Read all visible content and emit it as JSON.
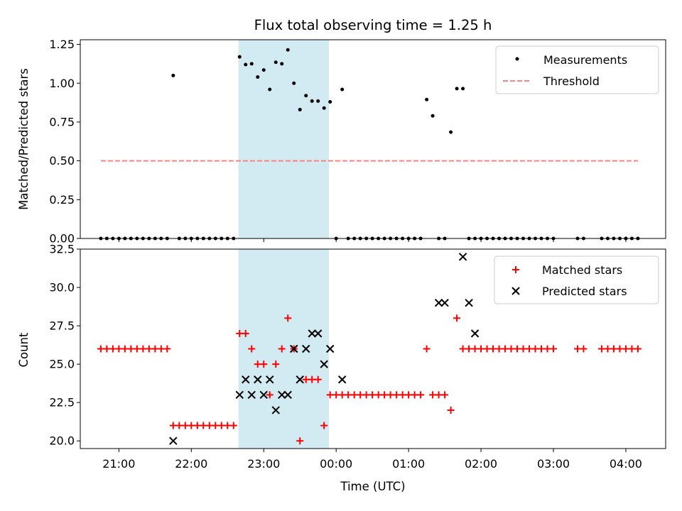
{
  "chart_data": [
    {
      "type": "scatter",
      "title": "Flux total observing time = 1.25 h",
      "ylabel": "Matched/Predicted stars",
      "xlabel": "",
      "ylim": [
        0,
        1.28
      ],
      "yticks": [
        "0.00",
        "0.25",
        "0.50",
        "0.75",
        "1.00",
        "1.25"
      ],
      "ytick_values": [
        0,
        0.25,
        0.5,
        0.75,
        1.0,
        1.25
      ],
      "xlim": [
        "20:28",
        "04:33"
      ],
      "highlight_span": {
        "x0": "22:39",
        "x1": "23:54",
        "color": "#add8e6"
      },
      "legend_position": "upper right",
      "series": [
        {
          "name": "Measurements",
          "kind": "points",
          "color": "#000000",
          "x": [
            "20:45",
            "20:50",
            "20:55",
            "21:00",
            "21:05",
            "21:10",
            "21:15",
            "21:20",
            "21:25",
            "21:30",
            "21:35",
            "21:40",
            "21:45",
            "21:50",
            "21:55",
            "22:00",
            "22:05",
            "22:10",
            "22:15",
            "22:20",
            "22:25",
            "22:30",
            "22:35",
            "22:40",
            "22:45",
            "22:50",
            "22:55",
            "23:00",
            "23:05",
            "23:10",
            "23:15",
            "23:20",
            "23:25",
            "23:30",
            "23:35",
            "23:40",
            "23:45",
            "23:50",
            "23:55",
            "24:00",
            "24:05",
            "24:10",
            "24:15",
            "24:20",
            "24:25",
            "24:30",
            "24:35",
            "24:40",
            "24:45",
            "24:50",
            "24:55",
            "25:00",
            "25:05",
            "25:10",
            "25:15",
            "25:20",
            "25:25",
            "25:30",
            "25:35",
            "25:40",
            "25:45",
            "25:50",
            "25:55",
            "26:00",
            "26:05",
            "26:10",
            "26:15",
            "26:20",
            "26:25",
            "26:30",
            "26:35",
            "26:40",
            "26:45",
            "26:50",
            "26:55",
            "27:00",
            "27:20",
            "27:25",
            "27:40",
            "27:45",
            "27:50",
            "27:55",
            "28:00",
            "28:05",
            "28:10"
          ],
          "y": [
            0,
            0,
            0,
            0,
            0,
            0,
            0,
            0,
            0,
            0,
            0,
            0,
            1.05,
            0,
            0,
            0,
            0,
            0,
            0,
            0,
            0,
            0,
            0,
            1.17,
            1.12,
            1.125,
            1.04,
            1.085,
            0.96,
            1.135,
            1.125,
            1.215,
            1.0,
            0.83,
            0.92,
            0.885,
            0.885,
            0.84,
            0.88,
            0,
            0.96,
            0,
            0,
            0,
            0,
            0,
            0,
            0,
            0,
            0,
            0,
            0,
            0,
            0,
            0.895,
            0.79,
            0,
            0,
            0.685,
            0.965,
            0.965,
            0,
            0,
            0,
            0,
            0,
            0,
            0,
            0,
            0,
            0,
            0,
            0,
            0,
            0,
            0,
            0,
            0,
            0,
            0,
            0,
            0,
            0,
            0,
            0
          ]
        },
        {
          "name": "Threshold",
          "kind": "dashed-line",
          "color": "#ff8080",
          "x": [
            "20:45",
            "28:10"
          ],
          "y": [
            0.5,
            0.5
          ]
        }
      ]
    },
    {
      "type": "scatter",
      "title": "",
      "ylabel": "Count",
      "xlabel": "Time (UTC)",
      "ylim": [
        19.5,
        32.5
      ],
      "yticks": [
        "20.0",
        "22.5",
        "25.0",
        "27.5",
        "30.0",
        "32.5"
      ],
      "ytick_values": [
        20,
        22.5,
        25,
        27.5,
        30,
        32.5
      ],
      "xlim": [
        "20:28",
        "04:33"
      ],
      "xticks": [
        "21:00",
        "22:00",
        "23:00",
        "00:00",
        "01:00",
        "02:00",
        "03:00",
        "04:00"
      ],
      "highlight_span": {
        "x0": "22:39",
        "x1": "23:54",
        "color": "#add8e6"
      },
      "legend_position": "upper right",
      "series": [
        {
          "name": "Matched stars",
          "kind": "plus",
          "color": "#ff0000",
          "x": [
            "20:45",
            "20:50",
            "20:55",
            "21:00",
            "21:05",
            "21:10",
            "21:15",
            "21:20",
            "21:25",
            "21:30",
            "21:35",
            "21:40",
            "21:45",
            "21:50",
            "21:55",
            "22:00",
            "22:05",
            "22:10",
            "22:15",
            "22:20",
            "22:25",
            "22:30",
            "22:35",
            "22:40",
            "22:45",
            "22:50",
            "22:55",
            "23:00",
            "23:05",
            "23:10",
            "23:15",
            "23:20",
            "23:25",
            "23:30",
            "23:35",
            "23:40",
            "23:45",
            "23:50",
            "23:55",
            "24:00",
            "24:05",
            "24:10",
            "24:15",
            "24:20",
            "24:25",
            "24:30",
            "24:35",
            "24:40",
            "24:45",
            "24:50",
            "24:55",
            "25:00",
            "25:05",
            "25:10",
            "25:15",
            "25:20",
            "25:25",
            "25:30",
            "25:35",
            "25:40",
            "25:45",
            "25:50",
            "25:55",
            "26:00",
            "26:05",
            "26:10",
            "26:15",
            "26:20",
            "26:25",
            "26:30",
            "26:35",
            "26:40",
            "26:45",
            "26:50",
            "26:55",
            "27:00",
            "27:20",
            "27:25",
            "27:40",
            "27:45",
            "27:50",
            "27:55",
            "28:00",
            "28:05",
            "28:10"
          ],
          "y": [
            26,
            26,
            26,
            26,
            26,
            26,
            26,
            26,
            26,
            26,
            26,
            26,
            21,
            21,
            21,
            21,
            21,
            21,
            21,
            21,
            21,
            21,
            21,
            27,
            27,
            26,
            25,
            25,
            23,
            25,
            26,
            28,
            26,
            20,
            24,
            24,
            24,
            21,
            23,
            23,
            23,
            23,
            23,
            23,
            23,
            23,
            23,
            23,
            23,
            23,
            23,
            23,
            23,
            23,
            26,
            23,
            23,
            23,
            22,
            28,
            26,
            26,
            26,
            26,
            26,
            26,
            26,
            26,
            26,
            26,
            26,
            26,
            26,
            26,
            26,
            26,
            26,
            26,
            26,
            26,
            26,
            26,
            26,
            26,
            26
          ]
        },
        {
          "name": "Predicted stars",
          "kind": "x",
          "color": "#000000",
          "x": [
            "21:45",
            "22:40",
            "22:45",
            "22:50",
            "22:55",
            "23:00",
            "23:05",
            "23:10",
            "23:15",
            "23:20",
            "23:25",
            "23:30",
            "23:35",
            "23:40",
            "23:45",
            "23:50",
            "23:55",
            "24:05",
            "25:25",
            "25:30",
            "25:45",
            "25:50",
            "25:55"
          ],
          "y": [
            20,
            23,
            24,
            23,
            24,
            23,
            24,
            22,
            23,
            23,
            26,
            24,
            26,
            27,
            27,
            25,
            26,
            24,
            29,
            29,
            32,
            29,
            27
          ]
        }
      ]
    }
  ]
}
